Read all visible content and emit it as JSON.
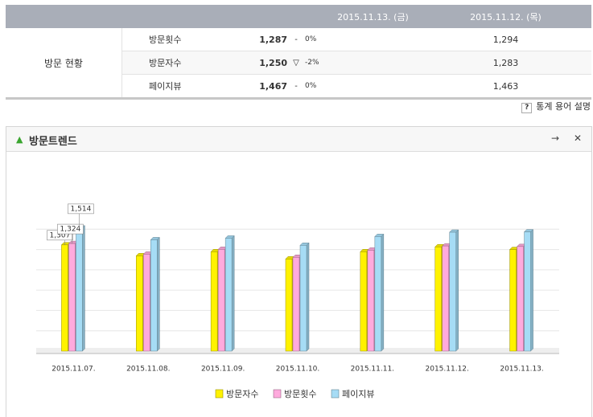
{
  "table": {
    "header": [
      "2015.11.13. (금)",
      "2015.11.12. (목)"
    ],
    "group": "방문 현황",
    "rows": [
      [
        "방문횟수",
        "1,287",
        "-",
        "0%",
        "1,294"
      ],
      [
        "방문자수",
        "1,250",
        "▽",
        "-2%",
        "1,283"
      ],
      [
        "페이지뷰",
        "1,467",
        "-",
        "0%",
        "1,463"
      ]
    ]
  },
  "help_link": "통계 용어 설명",
  "chart_data": {
    "type": "bar",
    "title": "방문트렌드",
    "categories": [
      "2015.11.07.",
      "2015.11.08.",
      "2015.11.09.",
      "2015.11.10.",
      "2015.11.11.",
      "2015.11.12.",
      "2015.11.13."
    ],
    "series": [
      {
        "name": "방문자수",
        "color": "#fff200",
        "values": [
          1307,
          1173,
          1223,
          1134,
          1223,
          1283,
          1250
        ],
        "value_labels": [
          "1,307",
          null,
          null,
          null,
          null,
          null,
          null
        ]
      },
      {
        "name": "방문횟수",
        "color": "#ffaadd",
        "values": [
          1324,
          1193,
          1252,
          1154,
          1242,
          1294,
          1287
        ],
        "value_labels": [
          "1,324",
          null,
          null,
          null,
          null,
          null,
          null
        ]
      },
      {
        "name": "페이지뷰",
        "color": "#a6dcf5",
        "values": [
          1514,
          1370,
          1390,
          1302,
          1410,
          1463,
          1467
        ],
        "value_labels": [
          "1,514",
          null,
          null,
          null,
          null,
          null,
          null
        ]
      }
    ],
    "ylim": [
      0,
      1750
    ],
    "yticks": [
      250,
      500,
      750,
      1000,
      1250,
      1500
    ],
    "grid": true,
    "legend": "bottom"
  }
}
